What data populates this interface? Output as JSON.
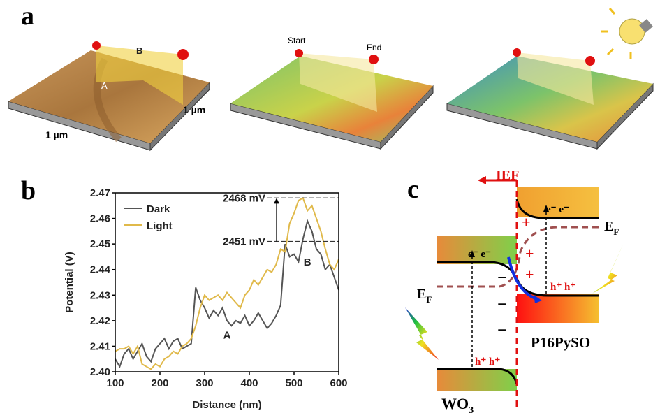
{
  "panel_labels": {
    "a": "a",
    "b": "b",
    "c": "c"
  },
  "afm": {
    "label_B": "B",
    "label_A": "A",
    "size_x": "1 µm",
    "size_y": "1 µm",
    "start": "Start",
    "end": "End"
  },
  "chart_data": {
    "type": "line",
    "x_label": "Distance (nm)",
    "y_label": "Potential (V)",
    "x": [
      100,
      110,
      120,
      130,
      140,
      150,
      160,
      170,
      180,
      190,
      200,
      210,
      220,
      230,
      240,
      250,
      260,
      270,
      280,
      290,
      300,
      310,
      320,
      330,
      340,
      350,
      360,
      370,
      380,
      390,
      400,
      410,
      420,
      430,
      440,
      450,
      460,
      470,
      480,
      490,
      500,
      510,
      520,
      530,
      540,
      550,
      560,
      570,
      580,
      590,
      600
    ],
    "series": [
      {
        "name": "Dark",
        "color": "#555555",
        "values": [
          2.405,
          2.402,
          2.407,
          2.409,
          2.405,
          2.408,
          2.411,
          2.406,
          2.404,
          2.409,
          2.411,
          2.413,
          2.409,
          2.412,
          2.413,
          2.409,
          2.41,
          2.411,
          2.433,
          2.428,
          2.425,
          2.421,
          2.424,
          2.422,
          2.425,
          2.42,
          2.418,
          2.42,
          2.419,
          2.422,
          2.418,
          2.42,
          2.423,
          2.42,
          2.417,
          2.419,
          2.422,
          2.426,
          2.45,
          2.445,
          2.446,
          2.443,
          2.452,
          2.459,
          2.455,
          2.448,
          2.446,
          2.44,
          2.442,
          2.437,
          2.432
        ]
      },
      {
        "name": "Light",
        "color": "#e0b94a",
        "values": [
          2.408,
          2.409,
          2.409,
          2.41,
          2.407,
          2.41,
          2.403,
          2.402,
          2.401,
          2.403,
          2.402,
          2.405,
          2.406,
          2.408,
          2.407,
          2.41,
          2.411,
          2.413,
          2.418,
          2.425,
          2.43,
          2.428,
          2.429,
          2.43,
          2.428,
          2.431,
          2.429,
          2.427,
          2.425,
          2.43,
          2.432,
          2.436,
          2.434,
          2.437,
          2.44,
          2.439,
          2.442,
          2.448,
          2.447,
          2.458,
          2.462,
          2.467,
          2.468,
          2.463,
          2.465,
          2.46,
          2.455,
          2.448,
          2.442,
          2.44,
          2.444
        ]
      }
    ],
    "xlim": [
      100,
      600
    ],
    "xticks": [
      100,
      200,
      300,
      400,
      500,
      600
    ],
    "ylim": [
      2.4,
      2.47
    ],
    "yticks": [
      {
        "value": 2.4,
        "label": "2.40"
      },
      2.41,
      2.42,
      2.43,
      2.44,
      2.45,
      2.46,
      2.47
    ],
    "legend": "upper left",
    "hlines": [
      {
        "value": 2.468,
        "label": "2468 mV"
      },
      {
        "value": 2.451,
        "label": "2451 mV"
      }
    ],
    "annotations": [
      {
        "text": "A",
        "x": 350,
        "y": 2.413
      },
      {
        "text": "B",
        "x": 530,
        "y": 2.4415
      }
    ]
  },
  "diagram": {
    "ief": "IEF",
    "ef_right": {
      "main": "E",
      "sub": "F"
    },
    "ef_left": {
      "main": "E",
      "sub": "F"
    },
    "electrons": "e⁻ e⁻",
    "holes": "h⁺ h⁺",
    "plus": "+",
    "minus": "−",
    "wo3": {
      "main": "WO",
      "sub": "3"
    },
    "polymer": "P16PySO"
  }
}
